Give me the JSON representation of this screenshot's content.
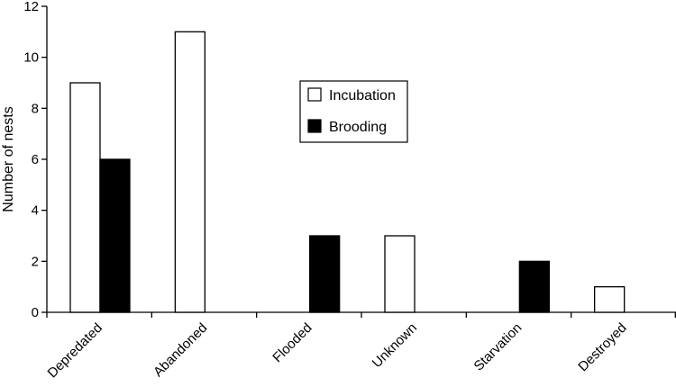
{
  "chart_data": {
    "type": "bar",
    "categories": [
      "Depredated",
      "Abandoned",
      "Flooded",
      "Unknown",
      "Starvation",
      "Destroyed"
    ],
    "series": [
      {
        "name": "Incubation",
        "values": [
          9,
          11,
          0,
          3,
          0,
          1
        ],
        "color": "#ffffff"
      },
      {
        "name": "Brooding",
        "values": [
          6,
          0,
          3,
          0,
          2,
          0
        ],
        "color": "#000000"
      }
    ],
    "xlabel": "",
    "ylabel": "Number of nests",
    "ylim": [
      0,
      12
    ],
    "yticks": [
      0,
      2,
      4,
      6,
      8,
      10,
      12
    ],
    "grid": false,
    "legend_position": "center-top"
  }
}
